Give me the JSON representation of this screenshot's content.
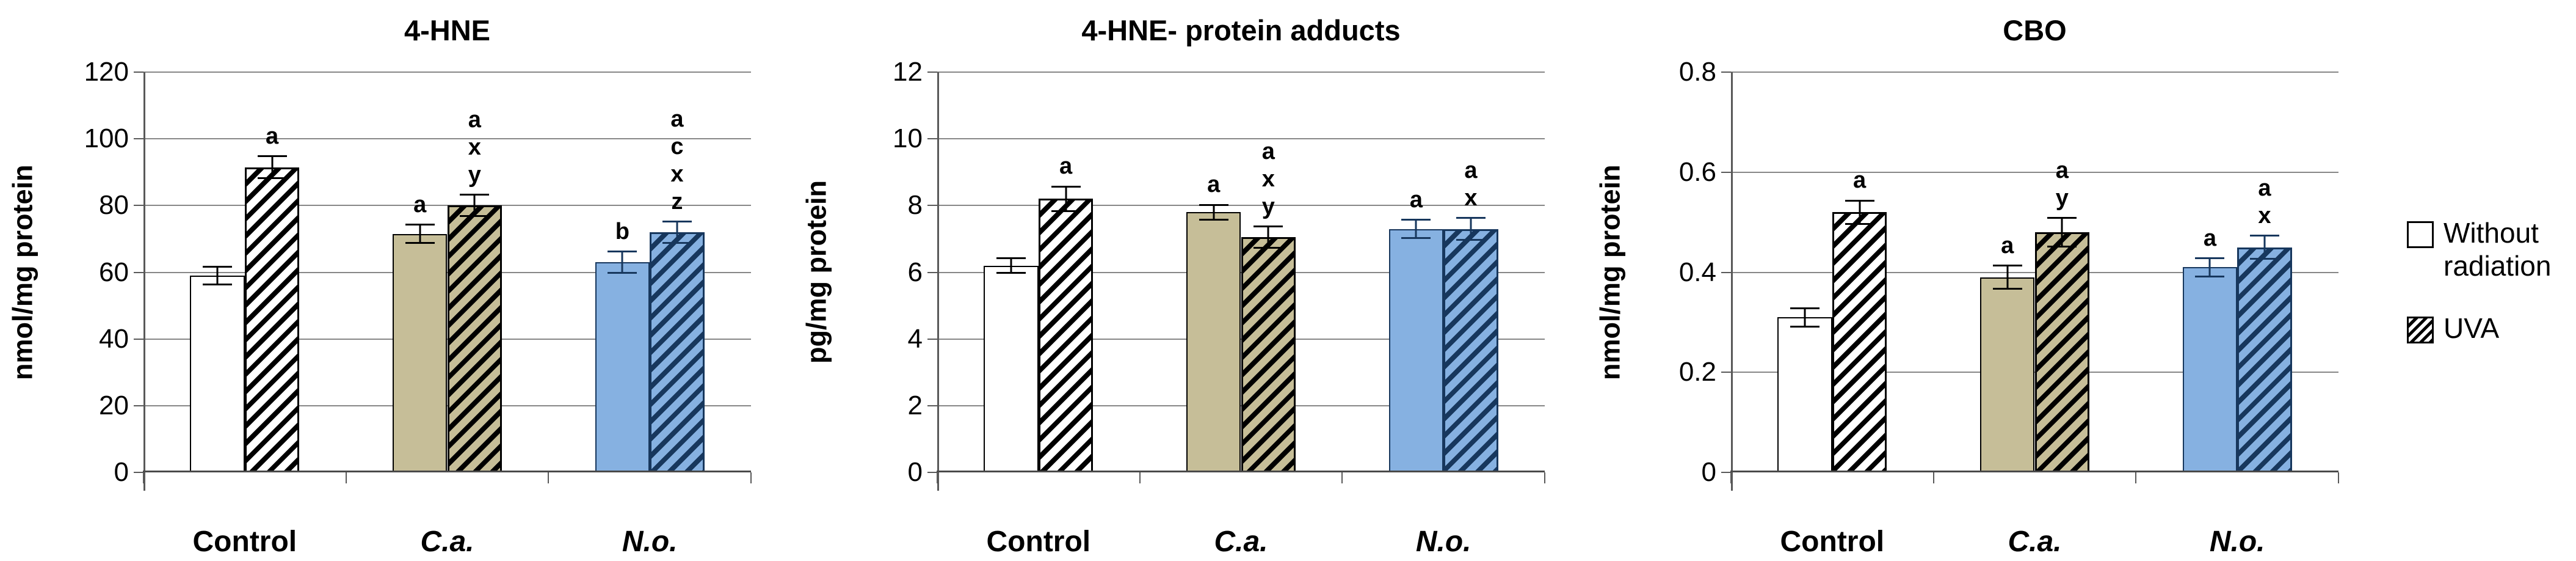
{
  "figure_title": "",
  "legend": {
    "items": [
      {
        "label": "Without radiation",
        "swatch": "plain"
      },
      {
        "label": "UVA",
        "swatch": "hatched"
      }
    ]
  },
  "colors": {
    "white_bar": "#FFFFFF",
    "tan_bar": "#C6BE98",
    "blue_bar": "#86B1E1",
    "black_edge": "#000000",
    "navy_edge": "#17375D",
    "gridline": "#878787",
    "axis": "#595959"
  },
  "chart_data": [
    {
      "type": "bar",
      "title": "4-HNE",
      "ylabel": "nmol/mg protein",
      "xlabel": "",
      "ylim": [
        0,
        120
      ],
      "yticks": [
        "0",
        "20",
        "40",
        "60",
        "80",
        "100",
        "120"
      ],
      "grid": true,
      "legend_position": "shared-right",
      "categories": [
        "Control",
        "C.a.",
        "N.o."
      ],
      "categories_italic": [
        false,
        true,
        true
      ],
      "group_fills": [
        "#FFFFFF",
        "#C6BE98",
        "#86B1E1"
      ],
      "group_edges": [
        "#000000",
        "#000000",
        "#17375D"
      ],
      "series": [
        {
          "name": "Without radiation",
          "values": [
            59,
            71.5,
            63
          ],
          "errors": [
            3,
            3,
            3.5
          ],
          "annotations": [
            [],
            [
              "a"
            ],
            [
              "b"
            ]
          ]
        },
        {
          "name": "UVA",
          "values": [
            91.5,
            80,
            72
          ],
          "errors": [
            3.5,
            3.5,
            3.5
          ],
          "annotations": [
            [
              "a"
            ],
            [
              "a",
              "x",
              "y"
            ],
            [
              "a",
              "c",
              "x",
              "z"
            ]
          ]
        }
      ]
    },
    {
      "type": "bar",
      "title": "4-HNE- protein adducts",
      "ylabel": "pg/mg protein",
      "xlabel": "",
      "ylim": [
        0,
        12
      ],
      "yticks": [
        "0",
        "2",
        "4",
        "6",
        "8",
        "10",
        "12"
      ],
      "grid": true,
      "legend_position": "shared-right",
      "categories": [
        "Control",
        "C.a.",
        "N.o."
      ],
      "categories_italic": [
        false,
        true,
        true
      ],
      "group_fills": [
        "#FFFFFF",
        "#C6BE98",
        "#86B1E1"
      ],
      "group_edges": [
        "#000000",
        "#000000",
        "#17375D"
      ],
      "series": [
        {
          "name": "Without radiation",
          "values": [
            6.2,
            7.8,
            7.3
          ],
          "errors": [
            0.25,
            0.25,
            0.3
          ],
          "annotations": [
            [],
            [
              "a"
            ],
            [
              "a"
            ]
          ]
        },
        {
          "name": "UVA",
          "values": [
            8.2,
            7.05,
            7.3
          ],
          "errors": [
            0.4,
            0.35,
            0.35
          ],
          "annotations": [
            [
              "a"
            ],
            [
              "a",
              "x",
              "y"
            ],
            [
              "a",
              "x"
            ]
          ]
        }
      ]
    },
    {
      "type": "bar",
      "title": "CBO",
      "ylabel": "nmol/mg protein",
      "xlabel": "",
      "ylim": [
        0,
        0.8
      ],
      "yticks": [
        "0",
        "0.2",
        "0.4",
        "0.6",
        "0.8"
      ],
      "grid": true,
      "legend_position": "shared-right",
      "categories": [
        "Control",
        "C.a.",
        "N.o."
      ],
      "categories_italic": [
        false,
        true,
        true
      ],
      "group_fills": [
        "#FFFFFF",
        "#C6BE98",
        "#86B1E1"
      ],
      "group_edges": [
        "#000000",
        "#000000",
        "#17375D"
      ],
      "series": [
        {
          "name": "Without radiation",
          "values": [
            0.31,
            0.39,
            0.41
          ],
          "errors": [
            0.02,
            0.025,
            0.02
          ],
          "annotations": [
            [],
            [
              "a"
            ],
            [
              "a"
            ]
          ]
        },
        {
          "name": "UVA",
          "values": [
            0.52,
            0.48,
            0.45
          ],
          "errors": [
            0.025,
            0.03,
            0.025
          ],
          "annotations": [
            [
              "a"
            ],
            [
              "a",
              "y"
            ],
            [
              "a",
              "x"
            ]
          ]
        }
      ]
    }
  ]
}
